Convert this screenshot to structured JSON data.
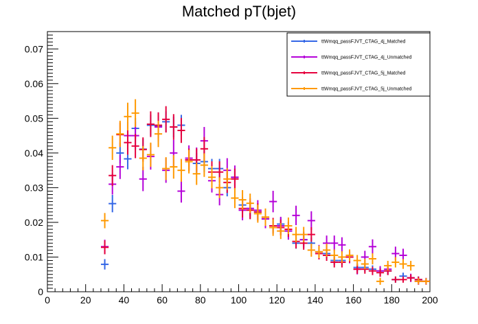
{
  "chart_data": {
    "type": "scatter",
    "title": "Matched pT(bjet)",
    "xlabel": "",
    "ylabel": "",
    "xlim": [
      0,
      200
    ],
    "ylim": [
      0,
      0.075
    ],
    "x_ticks": [
      0,
      20,
      40,
      60,
      80,
      100,
      120,
      140,
      160,
      180,
      200
    ],
    "y_ticks": [
      0,
      0.01,
      0.02,
      0.03,
      0.04,
      0.05,
      0.06,
      0.07
    ],
    "x_tick_labels": [
      "0",
      "20",
      "40",
      "60",
      "80",
      "100",
      "120",
      "140",
      "160",
      "180",
      "200"
    ],
    "y_tick_labels": [
      "0",
      "0.01",
      "0.02",
      "0.03",
      "0.04",
      "0.05",
      "0.06",
      "0.07"
    ],
    "bin_width": 4,
    "legend_position": "top-right",
    "grid": false,
    "series": [
      {
        "name": "ttWmqq_passFJVT_CTAG_4j_Matched",
        "color": "#3366e6",
        "x": [
          30,
          34,
          38,
          42,
          46,
          50,
          54,
          58,
          62,
          66,
          70,
          74,
          78,
          82,
          86,
          90,
          94,
          98,
          102,
          106,
          110,
          114,
          118,
          122,
          126,
          130,
          134,
          138,
          142,
          146,
          150,
          154,
          158,
          162,
          166,
          170,
          174,
          178,
          182,
          186,
          190,
          194,
          198
        ],
        "y": [
          0.0079,
          0.0254,
          0.04,
          0.0383,
          0.0471,
          0.0411,
          0.048,
          0.0478,
          0.049,
          0.0475,
          0.048,
          0.038,
          0.037,
          0.0375,
          0.0355,
          0.0355,
          0.03,
          0.033,
          0.025,
          0.024,
          0.023,
          0.021,
          0.019,
          0.0195,
          0.0175,
          0.014,
          0.015,
          0.014,
          0.0115,
          0.011,
          0.009,
          0.009,
          0.01,
          0.007,
          0.007,
          0.0065,
          0.006,
          0.006,
          0.0035,
          0.0045,
          0.004,
          0.0035,
          0.003
        ],
        "err": [
          0.0015,
          0.0025,
          0.003,
          0.003,
          0.003,
          0.003,
          0.003,
          0.003,
          0.003,
          0.003,
          0.003,
          0.003,
          0.003,
          0.003,
          0.0028,
          0.0028,
          0.0025,
          0.0025,
          0.0022,
          0.0022,
          0.0021,
          0.002,
          0.0019,
          0.0019,
          0.0018,
          0.0016,
          0.0017,
          0.0016,
          0.0014,
          0.0014,
          0.0013,
          0.0013,
          0.0013,
          0.0012,
          0.0012,
          0.0011,
          0.0011,
          0.0011,
          0.0009,
          0.001,
          0.0009,
          0.0009,
          0.0008
        ]
      },
      {
        "name": "ttWmqq_passFJVT_CTAG_4j_Unmatched",
        "color": "#b400d8",
        "x": [
          30,
          34,
          38,
          42,
          46,
          50,
          54,
          58,
          62,
          66,
          70,
          74,
          78,
          82,
          86,
          90,
          94,
          98,
          102,
          106,
          110,
          114,
          118,
          122,
          126,
          130,
          134,
          138,
          142,
          146,
          150,
          154,
          158,
          162,
          166,
          170,
          174,
          178,
          182,
          186,
          190,
          194,
          198
        ],
        "y": [
          0.013,
          0.031,
          0.036,
          0.045,
          0.045,
          0.0325,
          0.039,
          0.0475,
          0.035,
          0.04,
          0.029,
          0.0385,
          0.038,
          0.0435,
          0.032,
          0.028,
          0.035,
          0.033,
          0.0235,
          0.024,
          0.0235,
          0.021,
          0.026,
          0.019,
          0.0175,
          0.022,
          0.015,
          0.0205,
          0.0115,
          0.014,
          0.014,
          0.0135,
          0.01,
          0.0065,
          0.01,
          0.013,
          0.006,
          0.0065,
          0.011,
          0.0105,
          0.004,
          0.003,
          0.003
        ],
        "err": [
          0.002,
          0.003,
          0.0035,
          0.004,
          0.004,
          0.0035,
          0.0038,
          0.0042,
          0.0036,
          0.0038,
          0.0033,
          0.0037,
          0.0036,
          0.004,
          0.0034,
          0.0031,
          0.0035,
          0.0034,
          0.0029,
          0.0029,
          0.0029,
          0.0027,
          0.0031,
          0.0026,
          0.0025,
          0.0028,
          0.0023,
          0.0027,
          0.002,
          0.0022,
          0.0022,
          0.0022,
          0.0018,
          0.0015,
          0.0018,
          0.0021,
          0.0014,
          0.0015,
          0.002,
          0.0019,
          0.0012,
          0.001,
          0.001
        ]
      },
      {
        "name": "ttWmqq_passFJVT_CTAG_5j_Matched",
        "color": "#e6003c",
        "x": [
          30,
          34,
          38,
          42,
          46,
          50,
          54,
          58,
          62,
          66,
          70,
          74,
          78,
          82,
          86,
          90,
          94,
          98,
          102,
          106,
          110,
          114,
          118,
          122,
          126,
          130,
          134,
          138,
          142,
          146,
          150,
          154,
          158,
          162,
          166,
          170,
          174,
          178,
          182,
          186,
          190,
          194,
          198
        ],
        "y": [
          0.0128,
          0.0335,
          0.0453,
          0.043,
          0.042,
          0.041,
          0.0483,
          0.048,
          0.0497,
          0.0475,
          0.0465,
          0.038,
          0.038,
          0.0412,
          0.0345,
          0.0345,
          0.0315,
          0.0325,
          0.024,
          0.0235,
          0.023,
          0.0215,
          0.019,
          0.0185,
          0.018,
          0.0145,
          0.014,
          0.0165,
          0.011,
          0.0105,
          0.0085,
          0.0085,
          0.01,
          0.0065,
          0.0065,
          0.006,
          0.0055,
          0.006,
          0.0035,
          0.0035,
          0.004,
          0.0035,
          0.003
        ],
        "err": [
          0.002,
          0.003,
          0.0035,
          0.0035,
          0.0035,
          0.0035,
          0.0037,
          0.0037,
          0.0038,
          0.0037,
          0.0036,
          0.0033,
          0.0033,
          0.0034,
          0.0031,
          0.0031,
          0.003,
          0.003,
          0.0026,
          0.0026,
          0.0025,
          0.0024,
          0.0023,
          0.0023,
          0.0022,
          0.002,
          0.0019,
          0.0021,
          0.0017,
          0.0016,
          0.0015,
          0.0015,
          0.0016,
          0.0013,
          0.0013,
          0.0012,
          0.0012,
          0.0012,
          0.0009,
          0.0009,
          0.001,
          0.0009,
          0.0008
        ]
      },
      {
        "name": "ttWmqq_passFJVT_CTAG_5j_Unmatched",
        "color": "#ff9900",
        "x": [
          30,
          34,
          38,
          42,
          46,
          50,
          54,
          58,
          62,
          66,
          70,
          74,
          78,
          82,
          86,
          90,
          94,
          98,
          102,
          106,
          110,
          114,
          118,
          122,
          126,
          130,
          134,
          138,
          142,
          146,
          150,
          154,
          158,
          162,
          166,
          170,
          174,
          178,
          182,
          186,
          190,
          194,
          198
        ],
        "y": [
          0.0205,
          0.0415,
          0.0455,
          0.0505,
          0.0515,
          0.0385,
          0.0395,
          0.0455,
          0.0355,
          0.036,
          0.035,
          0.0375,
          0.034,
          0.0365,
          0.033,
          0.03,
          0.0325,
          0.027,
          0.0265,
          0.0255,
          0.0225,
          0.0215,
          0.0185,
          0.0175,
          0.019,
          0.0165,
          0.0165,
          0.012,
          0.0115,
          0.012,
          0.0105,
          0.01,
          0.0105,
          0.009,
          0.008,
          0.0095,
          0.003,
          0.0075,
          0.0085,
          0.008,
          0.0075,
          0.003,
          0.003
        ],
        "err": [
          0.0022,
          0.0035,
          0.0038,
          0.004,
          0.004,
          0.0035,
          0.0035,
          0.0038,
          0.0033,
          0.0034,
          0.0033,
          0.0034,
          0.0032,
          0.0034,
          0.0032,
          0.003,
          0.0031,
          0.0029,
          0.0028,
          0.0028,
          0.0026,
          0.0025,
          0.0024,
          0.0023,
          0.0024,
          0.0022,
          0.0022,
          0.0019,
          0.0018,
          0.0019,
          0.0017,
          0.0017,
          0.0017,
          0.0016,
          0.0015,
          0.0016,
          0.001,
          0.0014,
          0.0015,
          0.0014,
          0.0014,
          0.0009,
          0.0009
        ]
      }
    ]
  }
}
